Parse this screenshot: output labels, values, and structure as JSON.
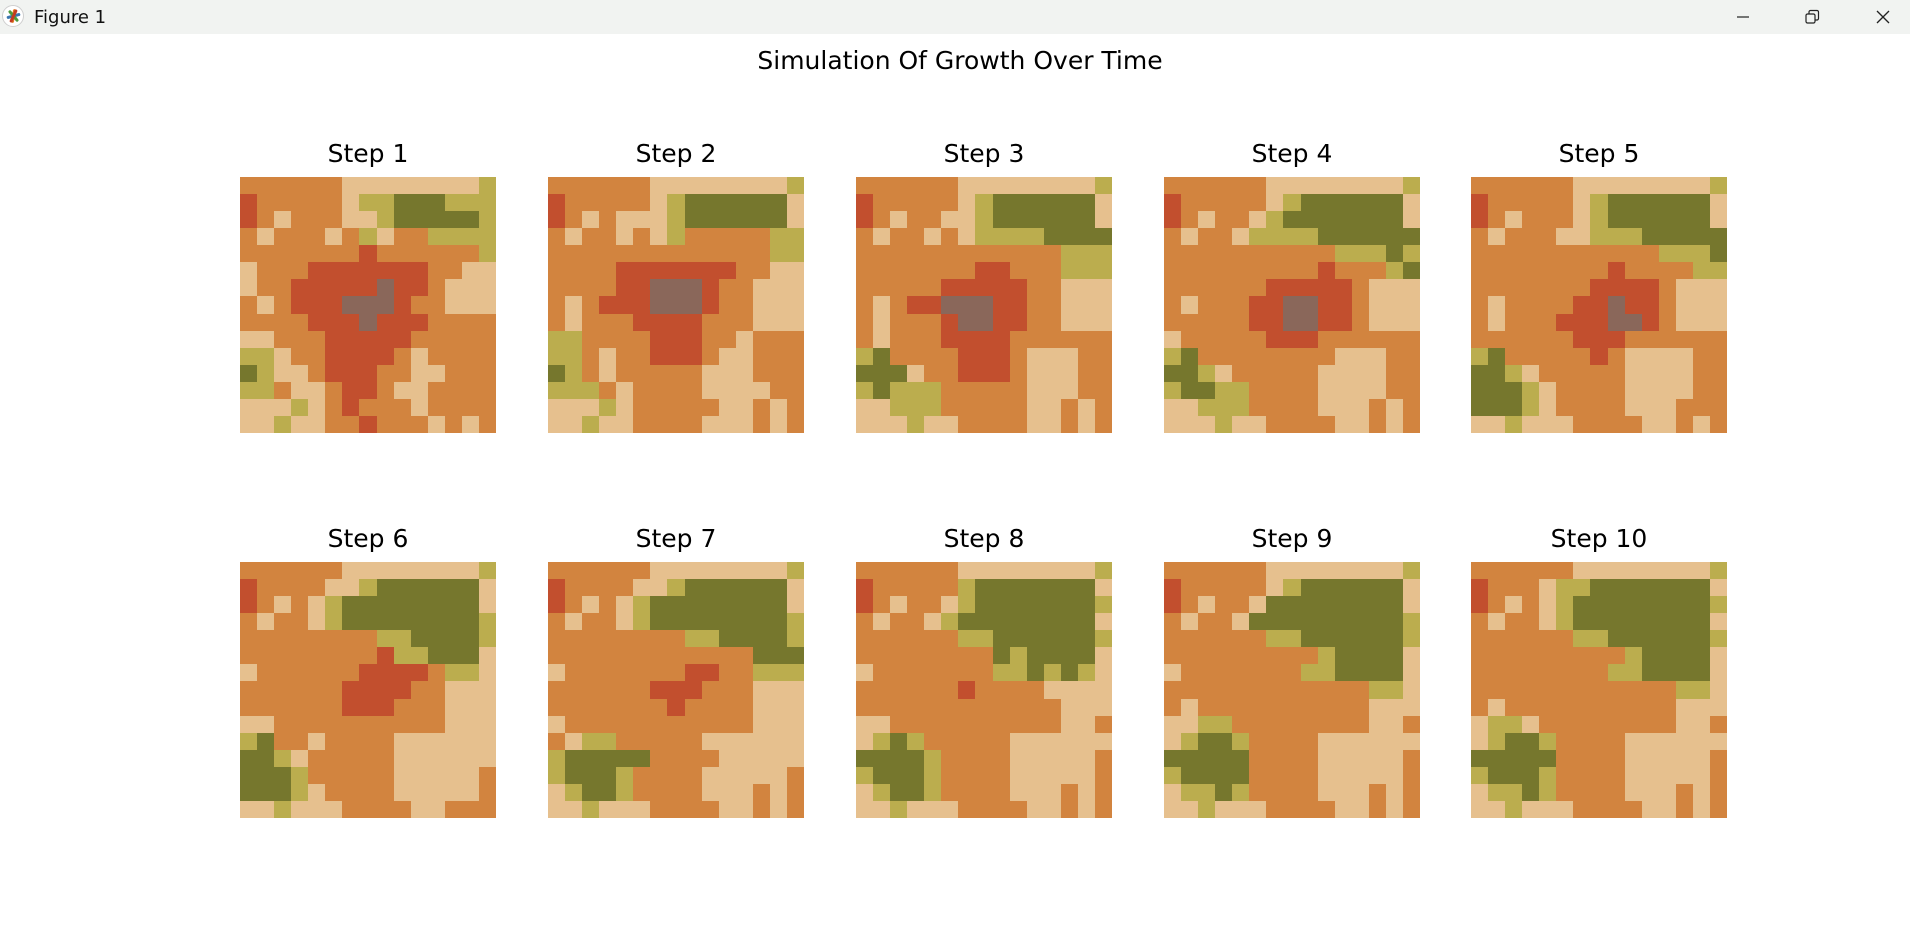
{
  "window": {
    "title": "Figure 1",
    "icon": "matplotlib-icon",
    "controls": [
      "minimize-icon",
      "restore-icon",
      "close-icon"
    ]
  },
  "figure": {
    "suptitle": "Simulation Of Growth Over Time"
  },
  "colors": {
    "0": "#e6c08e",
    "1": "#d2843f",
    "2": "#c24f2e",
    "3": "#8a675a",
    "4": "#bbad4e",
    "5": "#76772d"
  },
  "chart_data": {
    "type": "heatmap",
    "rows": 15,
    "cols": 15,
    "panels": [
      {
        "title": "Step 1",
        "grid": [
          "111111000000004",
          "211111044555444",
          "210111004555554",
          "101110140114444",
          "111111121111114",
          "011122222221100",
          "011222223221000",
          "101222333211000",
          "111122232221111",
          "001112222211111",
          "440112222101111",
          "540012221100111",
          "441001221001111",
          "000401211101111",
          "004001121110101"
        ]
      },
      {
        "title": "Step 2",
        "grid": [
          "111111000000004",
          "211111045555550",
          "210100045555550",
          "101101041111144",
          "111111111111144",
          "111122222221100",
          "111122333211000",
          "101222333211000",
          "101112222111000",
          "441111222110111",
          "441011222100111",
          "541011111000111",
          "444101111000011",
          "000401111100101",
          "004001111000101"
        ]
      },
      {
        "title": "Step 3",
        "grid": [
          "111111000000004",
          "211111045555550",
          "210110045555550",
          "101101044445555",
          "111111111111444",
          "111111122111444",
          "111112222211000",
          "101223332211000",
          "101112332211000",
          "101112222111111",
          "451111222100011",
          "555011222100011",
          "454441111100011",
          "004441111100101",
          "000400111100101"
        ]
      },
      {
        "title": "Step 4",
        "grid": [
          "111111000000004",
          "211111045555550",
          "210110455555550",
          "101104444555555",
          "111111111144454",
          "111111111211145",
          "111111222221000",
          "101112233221000",
          "111112233221000",
          "011111222111111",
          "451111111100011",
          "554011111000011",
          "455441111000011",
          "004441111000101",
          "000400111100101"
        ]
      },
      {
        "title": "Step 5",
        "grid": [
          "111111000000004",
          "211111045555550",
          "210111045555550",
          "101110044455555",
          "111111111114445",
          "111111112111144",
          "111111122221000",
          "101111223221000",
          "101112223321000",
          "111111222111111",
          "451111121000011",
          "554011111000011",
          "555401111000011",
          "555401111000111",
          "004000111100101"
        ]
      },
      {
        "title": "Step 6",
        "grid": [
          "111111000000004",
          "211110045555550",
          "210104555555550",
          "101104555555554",
          "111111114455554",
          "111111112445550",
          "011111122221440",
          "111111222211000",
          "111111222111000",
          "001111111111000",
          "451101111000000",
          "554011111000000",
          "555411111000001",
          "555401111000001",
          "004000111100111"
        ]
      },
      {
        "title": "Step 7",
        "grid": [
          "111111000000004",
          "211110045555550",
          "210104555555550",
          "101104555555554",
          "111111114455554",
          "111111111111555",
          "011111112211444",
          "111111222111000",
          "111111121111000",
          "011111111111000",
          "104411111000000",
          "455555111100000",
          "455541111000001",
          "045541111000101",
          "004000111100101"
        ]
      },
      {
        "title": "Step 8",
        "grid": [
          "111111000000004",
          "211111455555550",
          "210110455555554",
          "101104555555550",
          "111111445555554",
          "111111115455550",
          "011111114454540",
          "111111211110000",
          "111111111111000",
          "001111111111001",
          "045411111000000",
          "555541111000001",
          "455541111000001",
          "045541111000101",
          "004000111100101"
        ]
      },
      {
        "title": "Step 9",
        "grid": [
          "111111000000004",
          "211111045555550",
          "210110555555550",
          "101105555555554",
          "111111445555554",
          "111111111455550",
          "011111114455550",
          "111111111111440",
          "101111111111000",
          "004411111111001",
          "045541111000000",
          "555551111000001",
          "455551111000001",
          "044541111000101",
          "004000111100101"
        ]
      },
      {
        "title": "Step 10",
        "grid": [
          "111111000000004",
          "211104455555550",
          "210104555555554",
          "101104555555550",
          "111111445555554",
          "111111111455550",
          "111111114455550",
          "111111111111440",
          "101111111111000",
          "044011111111001",
          "045541111000000",
          "555551111000001",
          "455541111000001",
          "044541111000101",
          "004000111100101"
        ]
      }
    ]
  }
}
